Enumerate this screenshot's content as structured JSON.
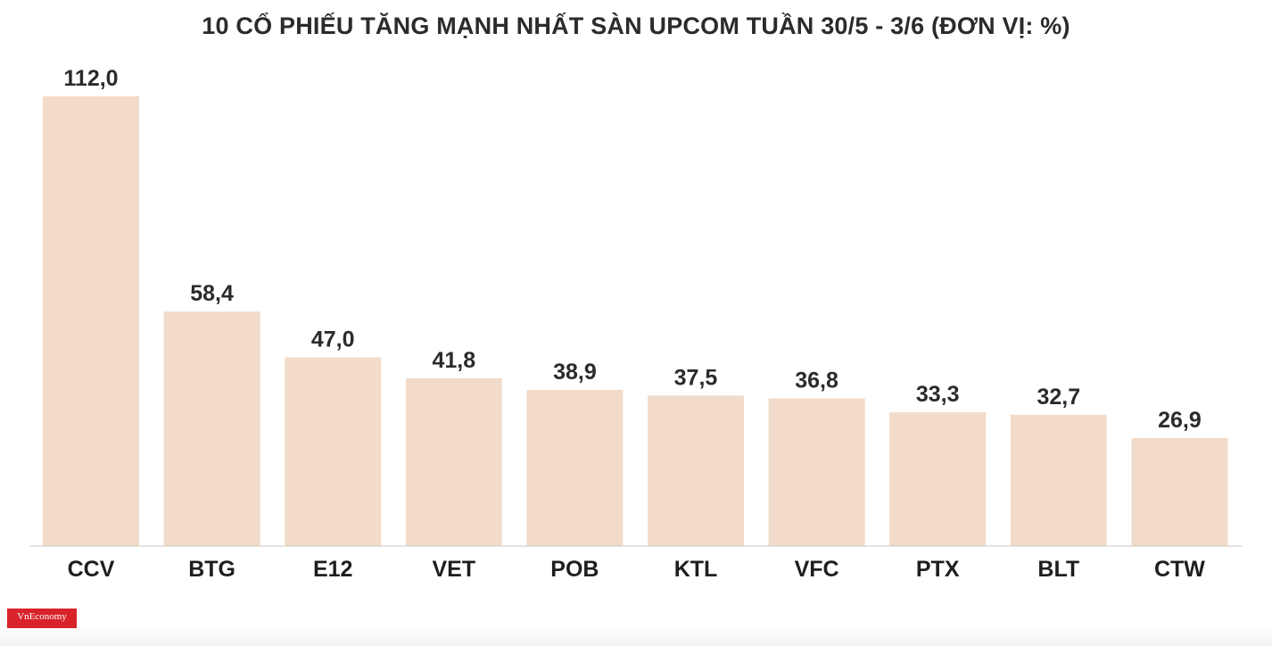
{
  "chart_data": {
    "type": "bar",
    "title": "10 CỔ PHIẾU TĂNG MẠNH NHẤT SÀN UPCOM TUẦN 30/5 - 3/6 (ĐƠN VỊ: %)",
    "categories": [
      "CCV",
      "BTG",
      "E12",
      "VET",
      "POB",
      "KTL",
      "VFC",
      "PTX",
      "BLT",
      "CTW"
    ],
    "values": [
      112.0,
      58.4,
      47.0,
      41.8,
      38.9,
      37.5,
      36.8,
      33.3,
      32.7,
      26.9
    ],
    "value_labels": [
      "112,0",
      "58,4",
      "47,0",
      "41,8",
      "38,9",
      "37,5",
      "36,8",
      "33,3",
      "32,7",
      "26,9"
    ],
    "ylim": [
      0,
      112
    ],
    "grid": false,
    "legend": "none",
    "bar_color": "#f2dbc8"
  },
  "logo": {
    "text": "VnEconomy"
  }
}
